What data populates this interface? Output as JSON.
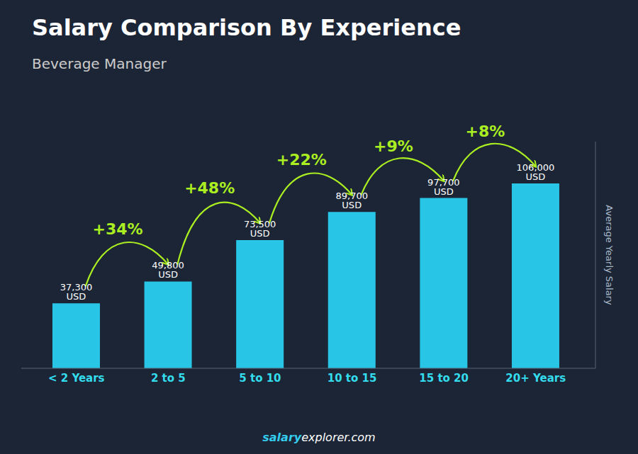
{
  "chart_data": {
    "type": "bar",
    "title": "Salary Comparison By Experience",
    "subtitle": "Beverage Manager",
    "categories": [
      "< 2 Years",
      "2 to 5",
      "5 to 10",
      "10 to 15",
      "15 to 20",
      "20+ Years"
    ],
    "values": [
      37300,
      49800,
      73500,
      89700,
      97700,
      106000
    ],
    "value_labels": [
      "37,300 USD",
      "49,800 USD",
      "73,500 USD",
      "89,700 USD",
      "97,700 USD",
      "106,000 USD"
    ],
    "data_labels": true,
    "color": "#29c5e6",
    "ylabel": "Average Yearly Salary",
    "ylim": [
      0,
      130000
    ],
    "tick_labels": "x",
    "grid": false,
    "annotations": [
      {
        "text": "+34%",
        "color": "#aaee22"
      },
      {
        "text": "+48%",
        "color": "#aaee22"
      },
      {
        "text": "+22%",
        "color": "#aaee22"
      },
      {
        "text": "+9%",
        "color": "#aaee22"
      },
      {
        "text": "+8%",
        "color": "#aaee22"
      }
    ],
    "footer": [
      "salary",
      "explorer.com"
    ]
  }
}
